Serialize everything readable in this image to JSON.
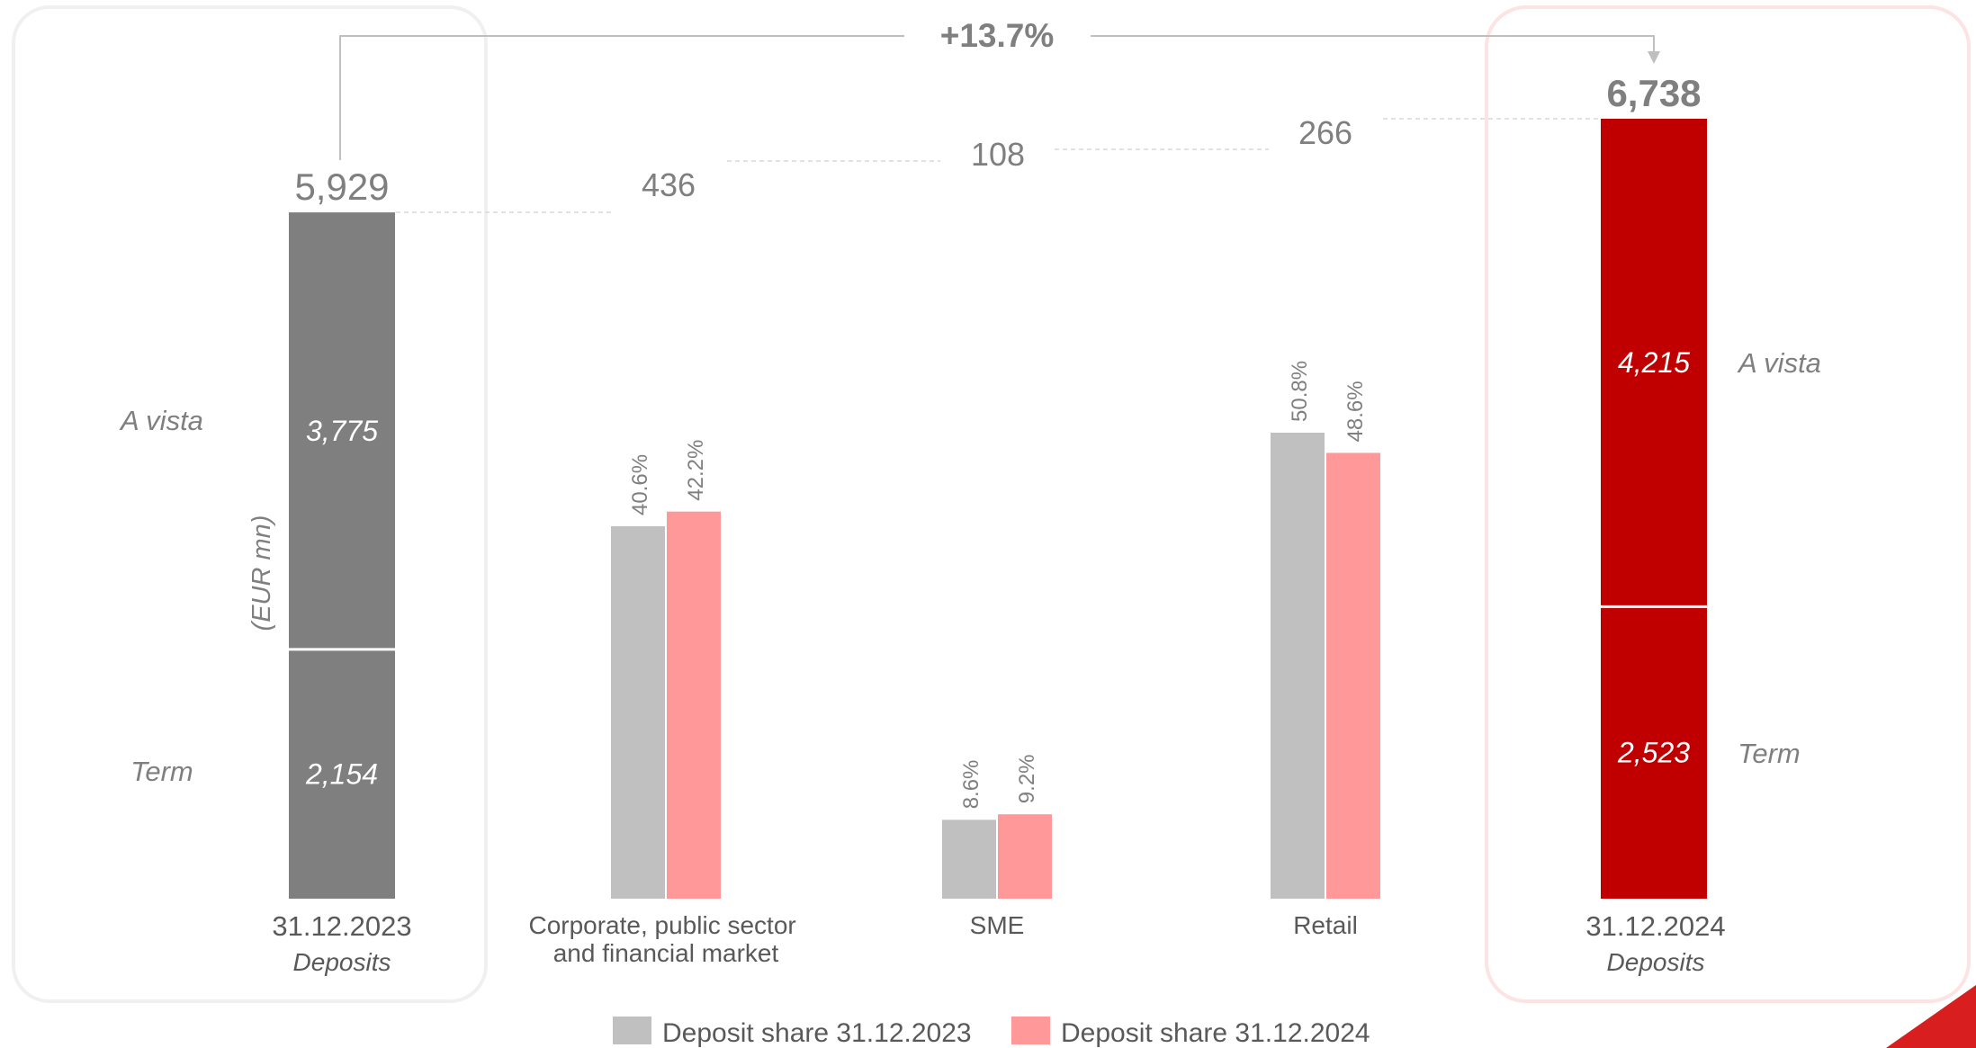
{
  "chart_data": {
    "type": "bar",
    "unit_label": "(EUR mn)",
    "growth_label": "+13.7%",
    "start": {
      "date_label": "31.12.2023",
      "sub_label": "Deposits",
      "total_label": "5,929",
      "total": 5929,
      "segments": [
        {
          "name": "Term",
          "value": 2154,
          "label": "2,154"
        },
        {
          "name": "A vista",
          "value": 3775,
          "label": "3,775"
        }
      ]
    },
    "end": {
      "date_label": "31.12.2024",
      "sub_label": "Deposits",
      "total_label": "6,738",
      "total": 6738,
      "segments": [
        {
          "name": "Term",
          "value": 2523,
          "label": "2,523"
        },
        {
          "name": "A vista",
          "value": 4215,
          "label": "4,215"
        }
      ]
    },
    "categories": [
      {
        "label": [
          "Corporate, public sector",
          "and financial market"
        ],
        "increment": 436,
        "increment_label": "436"
      },
      {
        "label": [
          "SME"
        ],
        "increment": 108,
        "increment_label": "108"
      },
      {
        "label": [
          "Retail"
        ],
        "increment": 266,
        "increment_label": "266"
      }
    ],
    "series": [
      {
        "name": "Deposit share 31.12.2023",
        "color": "#c0c0c0",
        "values": [
          40.6,
          8.6,
          50.8
        ],
        "labels": [
          "40.6%",
          "8.6%",
          "50.8%"
        ]
      },
      {
        "name": "Deposit share 31.12.2024",
        "color": "#ff9999",
        "values": [
          42.2,
          9.2,
          48.6
        ],
        "labels": [
          "42.2%",
          "9.2%",
          "48.6%"
        ]
      }
    ],
    "colors": {
      "start_bar": "#7f7f7f",
      "end_bar": "#c00000",
      "text": "#7f7f7f"
    },
    "legend_position": "bottom",
    "grid": false
  }
}
